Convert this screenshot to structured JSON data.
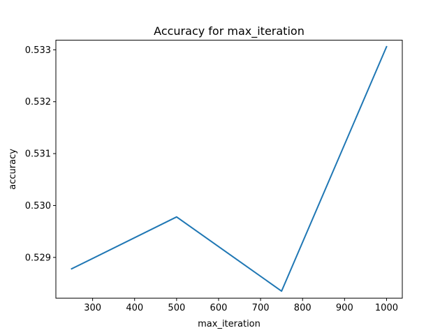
{
  "chart_data": {
    "type": "line",
    "title": "Accuracy for max_iteration",
    "xlabel": "max_iteration",
    "ylabel": "accuracy",
    "x": [
      250,
      500,
      750,
      1000
    ],
    "series": [
      {
        "values": [
          0.52878,
          0.52978,
          0.52835,
          0.53306
        ],
        "color": "#1f77b4"
      }
    ],
    "xlim": [
      212.5,
      1037.5
    ],
    "ylim": [
      0.528215,
      0.533185
    ],
    "xticks": [
      300,
      400,
      500,
      600,
      700,
      800,
      900,
      1000
    ],
    "xtick_labels": [
      "300",
      "400",
      "500",
      "600",
      "700",
      "800",
      "900",
      "1000"
    ],
    "yticks": [
      0.529,
      0.53,
      0.531,
      0.532,
      0.533
    ],
    "ytick_labels": [
      "0.529",
      "0.530",
      "0.531",
      "0.532",
      "0.533"
    ],
    "grid": false
  }
}
